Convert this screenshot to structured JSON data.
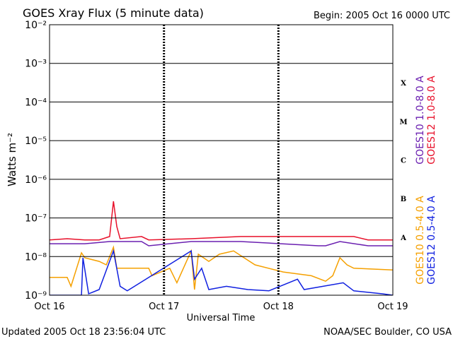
{
  "chart_data": {
    "type": "line",
    "title": "GOES Xray Flux (5 minute data)",
    "subtitle": "Begin:  2005 Oct 16 0000 UTC",
    "xlabel": "Universal Time",
    "ylabel": "Watts m⁻²",
    "footer_left": "Updated 2005 Oct 18 23:56:04 UTC",
    "footer_right": "NOAA/SEC Boulder, CO USA",
    "ylog": true,
    "grid": true,
    "xlim": [
      0,
      72
    ],
    "xticks": [
      {
        "value": 0,
        "label": "Oct 16"
      },
      {
        "value": 24,
        "label": "Oct 17"
      },
      {
        "value": 48,
        "label": "Oct 18"
      },
      {
        "value": 72,
        "label": "Oct 19"
      }
    ],
    "ylim": [
      1e-09,
      0.01
    ],
    "yticks": [
      {
        "value": 1e-09,
        "label": "10⁻⁹"
      },
      {
        "value": 1e-08,
        "label": "10⁻⁸"
      },
      {
        "value": 1e-07,
        "label": "10⁻⁷"
      },
      {
        "value": 1e-06,
        "label": "10⁻⁶"
      },
      {
        "value": 1e-05,
        "label": "10⁻⁵"
      },
      {
        "value": 0.0001,
        "label": "10⁻⁴"
      },
      {
        "value": 0.001,
        "label": "10⁻³"
      },
      {
        "value": 0.01,
        "label": "10⁻²"
      }
    ],
    "class_labels": [
      {
        "text": "A",
        "value": 1e-08
      },
      {
        "text": "B",
        "value": 1e-07
      },
      {
        "text": "C",
        "value": 1e-06
      },
      {
        "text": "M",
        "value": 1e-05
      },
      {
        "text": "X",
        "value": 0.0001
      }
    ],
    "series": [
      {
        "name": "GOES10 1.0-8.0 A",
        "color": "#6a1fb0",
        "legend_group": "long",
        "x": [
          0,
          7.4,
          12.6,
          14.1,
          19.3,
          20.8,
          29.7,
          40.1,
          56.4,
          57.9,
          60.9,
          66.8,
          72
        ],
        "values": [
          2.15e-08,
          2.15e-08,
          2.45e-08,
          2.45e-08,
          2.45e-08,
          1.9e-08,
          2.45e-08,
          2.45e-08,
          1.9e-08,
          1.9e-08,
          2.45e-08,
          1.9e-08,
          1.9e-08
        ]
      },
      {
        "name": "GOES12 1.0-8.0 A",
        "color": "#e8102a",
        "legend_group": "long",
        "x": [
          0,
          3.7,
          7.4,
          10.4,
          12.6,
          13.4,
          14.1,
          14.8,
          19.3,
          20.8,
          29.7,
          40.1,
          49,
          56.4,
          63.8,
          66.8,
          72
        ],
        "values": [
          2.7e-08,
          2.9e-08,
          2.7e-08,
          2.7e-08,
          3.3e-08,
          2.7e-07,
          6e-08,
          2.9e-08,
          3.3e-08,
          2.7e-08,
          2.9e-08,
          3.3e-08,
          3.3e-08,
          3.3e-08,
          3.3e-08,
          2.7e-08,
          2.7e-08
        ]
      },
      {
        "name": "GOES10 0.5-4.0 A",
        "color": "#f5a000",
        "legend_group": "short",
        "x": [
          0,
          3.7,
          4.5,
          6.7,
          7.4,
          10.4,
          11.9,
          13.4,
          14.1,
          20.8,
          21.5,
          25.2,
          26.7,
          29.7,
          30.4,
          31.2,
          33.4,
          35.6,
          38.6,
          40.8,
          43.1,
          49,
          54.9,
          57.9,
          59.4,
          60.9,
          62.4,
          63.8,
          72
        ],
        "values": [
          2.9e-09,
          2.9e-09,
          1.7e-09,
          1.25e-08,
          9.3e-09,
          7.5e-09,
          6.1e-09,
          1.75e-08,
          5e-09,
          5e-09,
          3.2e-09,
          5e-09,
          2.1e-09,
          1.4e-08,
          1.4e-09,
          1.15e-08,
          7.5e-09,
          1.15e-08,
          1.4e-08,
          9.3e-09,
          6.1e-09,
          4e-09,
          3.2e-09,
          2.3e-09,
          3.2e-09,
          9.3e-09,
          6.1e-09,
          5e-09,
          4.5e-09
        ]
      },
      {
        "name": "GOES12 0.5-4.0 A",
        "color": "#1020e0",
        "legend_group": "short",
        "x": [
          0,
          6.7,
          7.0,
          8.2,
          10.4,
          13.4,
          14.8,
          16.3,
          29.7,
          30.4,
          31.9,
          33.4,
          37.1,
          41.6,
          46,
          52,
          53.4,
          61.6,
          63.8,
          69.8,
          72
        ],
        "values": [
          1e-09,
          1e-09,
          9.3e-09,
          1.09e-09,
          1.4e-09,
          1.4e-08,
          1.7e-09,
          1.3e-09,
          1.4e-08,
          2.6e-09,
          5e-09,
          1.4e-09,
          1.7e-09,
          1.4e-09,
          1.3e-09,
          2.6e-09,
          1.4e-09,
          2.1e-09,
          1.3e-09,
          1.09e-09,
          1e-09
        ]
      }
    ]
  }
}
